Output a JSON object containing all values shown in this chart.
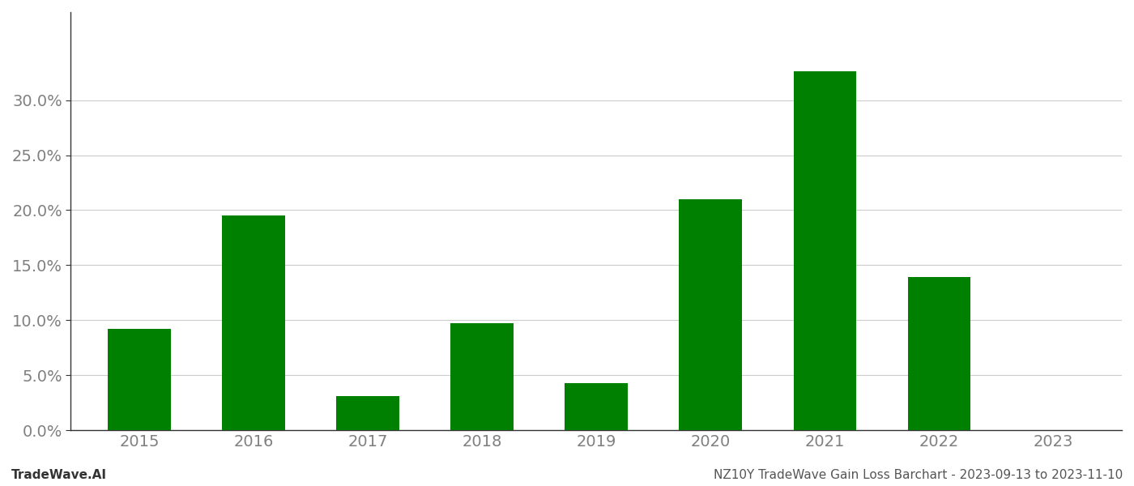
{
  "categories": [
    "2015",
    "2016",
    "2017",
    "2018",
    "2019",
    "2020",
    "2021",
    "2022",
    "2023"
  ],
  "values": [
    0.092,
    0.195,
    0.031,
    0.097,
    0.043,
    0.21,
    0.326,
    0.139,
    null
  ],
  "bar_color": "#008000",
  "background_color": "#ffffff",
  "grid_color": "#cccccc",
  "ylabel_color": "#808080",
  "xlabel_color": "#808080",
  "ylim": [
    0.0,
    0.38
  ],
  "yticks": [
    0.0,
    0.05,
    0.1,
    0.15,
    0.2,
    0.25,
    0.3
  ],
  "footer_left": "TradeWave.AI",
  "footer_right": "NZ10Y TradeWave Gain Loss Barchart - 2023-09-13 to 2023-11-10",
  "bar_width": 0.55,
  "spine_color": "#333333",
  "tick_label_fontsize": 14
}
